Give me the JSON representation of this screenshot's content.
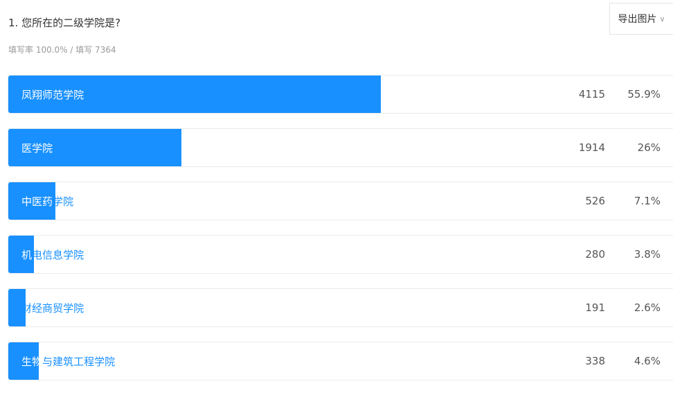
{
  "question": {
    "title": "1. 您所在的二级学院是?",
    "meta": "填写率 100.0% / 填写 7364"
  },
  "toolbar": {
    "export_label": "导出图片",
    "export_chevron": "∨"
  },
  "colors": {
    "bar": "#1890ff",
    "label_on_bar": "#ffffff",
    "label_off_bar": "#1890ff"
  },
  "chart_data": {
    "type": "bar",
    "orientation": "horizontal",
    "categories": [
      "凤翔师范学院",
      "医学院",
      "中医药学院",
      "机电信息学院",
      "财经商贸学院",
      "生物与建筑工程学院"
    ],
    "values": [
      4115,
      1914,
      526,
      280,
      191,
      338
    ],
    "percents": [
      "55.9%",
      "26%",
      "7.1%",
      "3.8%",
      "2.6%",
      "4.6%"
    ],
    "percent_values": [
      55.9,
      26,
      7.1,
      3.8,
      2.6,
      4.6
    ]
  }
}
